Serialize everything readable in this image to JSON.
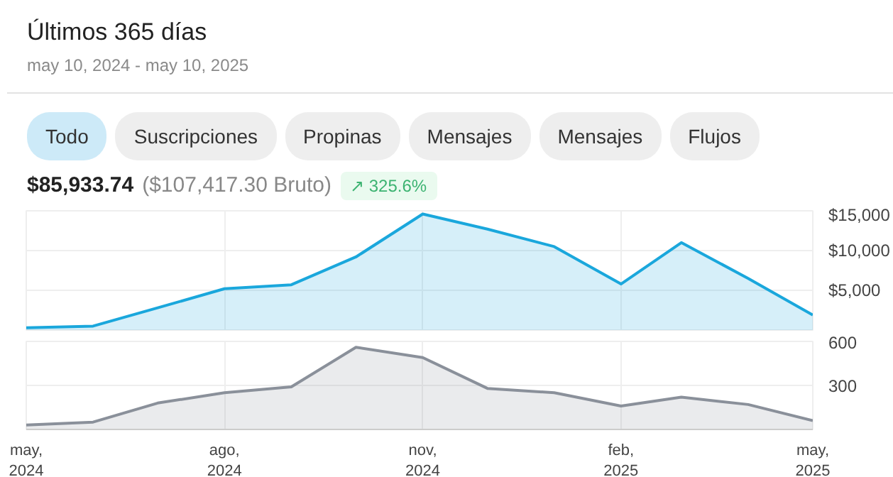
{
  "chart_data": [
    {
      "type": "area",
      "title": "Últimos 365 días",
      "subtitle": "may 10, 2024 - may 10, 2025",
      "annotations": [
        "Todo",
        "Suscripciones",
        "Propinas",
        "Mensajes",
        "Mensajes",
        "Flujos",
        "$85,933.74",
        "($107,417.30 Bruto)",
        "↗ 325.6%"
      ],
      "x": [
        "2024-05-10",
        "2024-06-10",
        "2024-07-10",
        "2024-08-10",
        "2024-09-10",
        "2024-10-10",
        "2024-11-10",
        "2024-12-10",
        "2025-01-10",
        "2025-02-10",
        "2025-03-10",
        "2025-04-10",
        "2025-05-10"
      ],
      "series": [
        {
          "color": "#1aa7dc",
          "values": [
            300,
            500,
            2800,
            5200,
            5700,
            9200,
            14600,
            12700,
            10500,
            5800,
            11000,
            6500,
            1900
          ]
        }
      ],
      "xlim": [
        "2024-05-10",
        "2025-05-10"
      ],
      "xticks": [
        {
          "value": "2024-05-10",
          "label": null
        },
        {
          "value": "2024-08-10",
          "label": null
        },
        {
          "value": "2024-11-10",
          "label": null
        },
        {
          "value": "2025-02-10",
          "label": null
        },
        {
          "value": "2025-05-10",
          "label": null
        }
      ],
      "ylim": [
        0,
        15000
      ],
      "yticks": [
        {
          "value": 5000,
          "label": "$5,000"
        },
        {
          "value": 10000,
          "label": "$10,000"
        },
        {
          "value": 15000,
          "label": "$15,000"
        }
      ],
      "tick_labels": "y",
      "grid": true
    },
    {
      "type": "area",
      "x": [
        "2024-05-10",
        "2024-06-10",
        "2024-07-10",
        "2024-08-10",
        "2024-09-10",
        "2024-10-10",
        "2024-11-10",
        "2024-12-10",
        "2025-01-10",
        "2025-02-10",
        "2025-03-10",
        "2025-04-10",
        "2025-05-10"
      ],
      "series": [
        {
          "color": "#8a909a",
          "values": [
            30,
            50,
            180,
            250,
            290,
            560,
            490,
            280,
            250,
            160,
            220,
            170,
            60
          ]
        }
      ],
      "xlim": [
        "2024-05-10",
        "2025-05-10"
      ],
      "xticks": [
        {
          "value": "2024-05-10",
          "label": "may,\n2024"
        },
        {
          "value": "2024-08-10",
          "label": "ago,\n2024"
        },
        {
          "value": "2024-11-10",
          "label": "nov,\n2024"
        },
        {
          "value": "2025-02-10",
          "label": "feb,\n2025"
        },
        {
          "value": "2025-05-10",
          "label": "may,\n2025"
        }
      ],
      "ylim": [
        0,
        600
      ],
      "yticks": [
        300,
        600
      ],
      "grid": true
    }
  ]
}
